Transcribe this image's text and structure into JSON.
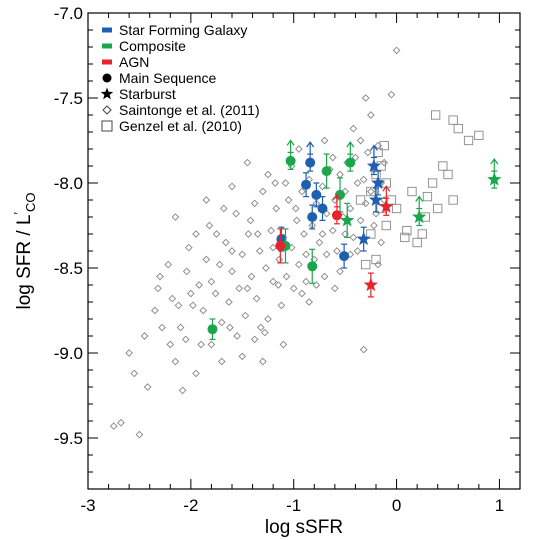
{
  "chart_data": {
    "type": "scatter",
    "xlabel": "log sSFR",
    "ylabel_main": "log SFR / L",
    "ylabel_prime": "′",
    "ylabel_sub": "CO",
    "xlim": [
      -3,
      1.2
    ],
    "ylim": [
      -9.8,
      -7.0
    ],
    "xticks": [
      {
        "v": -3,
        "label": "-3"
      },
      {
        "v": -2,
        "label": "-2"
      },
      {
        "v": -1,
        "label": "-1"
      },
      {
        "v": 0,
        "label": "0"
      },
      {
        "v": 1,
        "label": "1"
      }
    ],
    "yticks": [
      {
        "v": -7.0,
        "label": "-7.0"
      },
      {
        "v": -7.5,
        "label": "-7.5"
      },
      {
        "v": -8.0,
        "label": "-8.0"
      },
      {
        "v": -8.5,
        "label": "-8.5"
      },
      {
        "v": -9.0,
        "label": "-9.0"
      },
      {
        "v": -9.5,
        "label": "-9.5"
      }
    ],
    "colors": {
      "sfg": "#1f5fb0",
      "composite": "#1aa64b",
      "agn": "#e8222a",
      "literature": "#888888"
    },
    "legend": [
      {
        "label": "Star Forming Galaxy",
        "symbol": "bar",
        "color": "#1f5fb0"
      },
      {
        "label": "Composite",
        "symbol": "bar",
        "color": "#1aa64b"
      },
      {
        "label": "AGN",
        "symbol": "bar",
        "color": "#e8222a"
      },
      {
        "label": "Main Sequence",
        "symbol": "circle",
        "color": "#000000"
      },
      {
        "label": "Starburst",
        "symbol": "star",
        "color": "#000000"
      },
      {
        "label": "Saintonge et al. (2011)",
        "symbol": "diamond",
        "color": "#000000"
      },
      {
        "label": "Genzel et al. (2010)",
        "symbol": "square",
        "color": "#000000"
      }
    ],
    "series": [
      {
        "name": "Saintonge et al. (2011)",
        "marker": "diamond",
        "points": [
          [
            -2.75,
            -9.43
          ],
          [
            -2.68,
            -9.41
          ],
          [
            -2.55,
            -9.12
          ],
          [
            -2.5,
            -9.48
          ],
          [
            -2.42,
            -9.2
          ],
          [
            -2.35,
            -8.75
          ],
          [
            -2.32,
            -8.62
          ],
          [
            -2.28,
            -8.85
          ],
          [
            -2.22,
            -8.48
          ],
          [
            -2.18,
            -8.68
          ],
          [
            -2.15,
            -9.05
          ],
          [
            -2.12,
            -8.72
          ],
          [
            -2.08,
            -9.22
          ],
          [
            -2.04,
            -8.52
          ],
          [
            -2.02,
            -8.38
          ],
          [
            -1.98,
            -8.72
          ],
          [
            -1.95,
            -9.12
          ],
          [
            -1.92,
            -8.6
          ],
          [
            -1.88,
            -8.75
          ],
          [
            -1.85,
            -8.45
          ],
          [
            -1.82,
            -8.25
          ],
          [
            -1.8,
            -8.95
          ],
          [
            -1.76,
            -8.65
          ],
          [
            -1.72,
            -8.48
          ],
          [
            -1.7,
            -8.82
          ],
          [
            -1.66,
            -8.35
          ],
          [
            -1.63,
            -8.7
          ],
          [
            -1.6,
            -8.52
          ],
          [
            -1.56,
            -8.18
          ],
          [
            -1.53,
            -8.62
          ],
          [
            -1.5,
            -8.42
          ],
          [
            -1.47,
            -8.78
          ],
          [
            -1.44,
            -8.3
          ],
          [
            -1.41,
            -8.55
          ],
          [
            -1.38,
            -8.12
          ],
          [
            -1.36,
            -8.68
          ],
          [
            -1.33,
            -8.4
          ],
          [
            -1.3,
            -8.05
          ],
          [
            -1.27,
            -8.5
          ],
          [
            -1.25,
            -8.8
          ],
          [
            -1.22,
            -8.28
          ],
          [
            -1.2,
            -8.58
          ],
          [
            -1.17,
            -8.15
          ],
          [
            -1.14,
            -8.45
          ],
          [
            -1.12,
            -8.72
          ],
          [
            -1.1,
            -8.32
          ],
          [
            -1.07,
            -8.55
          ],
          [
            -1.05,
            -8.1
          ],
          [
            -1.02,
            -8.38
          ],
          [
            -1.0,
            -8.62
          ],
          [
            -0.97,
            -8.22
          ],
          [
            -0.95,
            -8.48
          ],
          [
            -0.92,
            -8.05
          ],
          [
            -0.9,
            -8.3
          ],
          [
            -0.88,
            -8.58
          ],
          [
            -0.85,
            -7.98
          ],
          [
            -0.82,
            -8.25
          ],
          [
            -0.8,
            -8.45
          ],
          [
            -0.78,
            -8.12
          ],
          [
            -0.75,
            -8.35
          ],
          [
            -0.72,
            -8.02
          ],
          [
            -0.7,
            -8.55
          ],
          [
            -0.68,
            -8.18
          ],
          [
            -0.65,
            -7.92
          ],
          [
            -0.62,
            -8.28
          ],
          [
            -0.6,
            -8.1
          ],
          [
            -0.58,
            -8.4
          ],
          [
            -0.55,
            -7.95
          ],
          [
            -0.52,
            -8.2
          ],
          [
            -0.5,
            -8.05
          ],
          [
            -0.48,
            -7.88
          ],
          [
            -0.45,
            -8.15
          ],
          [
            -0.42,
            -8.32
          ],
          [
            -0.4,
            -7.85
          ],
          [
            -0.38,
            -8.0
          ],
          [
            -0.35,
            -8.22
          ],
          [
            -0.32,
            -7.98
          ],
          [
            -0.3,
            -8.12
          ],
          [
            -0.28,
            -7.82
          ],
          [
            -0.25,
            -8.05
          ],
          [
            -0.22,
            -7.92
          ],
          [
            -0.2,
            -8.18
          ],
          [
            -0.18,
            -7.78
          ],
          [
            -0.15,
            -8.0
          ],
          [
            -0.12,
            -7.88
          ],
          [
            -0.3,
            -7.5
          ],
          [
            -0.05,
            -7.48
          ],
          [
            0.0,
            -7.22
          ],
          [
            -0.32,
            -8.98
          ],
          [
            -1.6,
            -8.02
          ],
          [
            -1.45,
            -7.88
          ],
          [
            -1.25,
            -7.95
          ],
          [
            -1.75,
            -8.3
          ],
          [
            -2.05,
            -8.92
          ],
          [
            -1.95,
            -8.3
          ],
          [
            -1.5,
            -9.02
          ],
          [
            -1.38,
            -8.92
          ],
          [
            -1.28,
            -8.88
          ],
          [
            -0.95,
            -7.8
          ],
          [
            -1.08,
            -8.0
          ],
          [
            -0.6,
            -8.62
          ],
          [
            -0.85,
            -8.7
          ],
          [
            -1.1,
            -8.95
          ],
          [
            -1.3,
            -9.05
          ],
          [
            -2.3,
            -8.55
          ],
          [
            -2.45,
            -8.9
          ],
          [
            -2.6,
            -9.0
          ],
          [
            -2.15,
            -8.2
          ],
          [
            -1.68,
            -8.15
          ],
          [
            -1.32,
            -8.85
          ],
          [
            -0.7,
            -7.75
          ],
          [
            -0.42,
            -7.68
          ],
          [
            -0.25,
            -7.6
          ],
          [
            -0.55,
            -8.52
          ],
          [
            -0.68,
            -8.42
          ],
          [
            -1.85,
            -8.1
          ],
          [
            -1.45,
            -8.62
          ],
          [
            -1.18,
            -8.0
          ],
          [
            -1.02,
            -7.9
          ],
          [
            -0.78,
            -8.6
          ],
          [
            -1.55,
            -8.9
          ],
          [
            -1.9,
            -8.95
          ],
          [
            -2.2,
            -8.95
          ],
          [
            -1.42,
            -8.22
          ],
          [
            -1.2,
            -8.38
          ],
          [
            -0.98,
            -8.15
          ],
          [
            -0.88,
            -8.42
          ],
          [
            -0.62,
            -7.85
          ],
          [
            -0.45,
            -8.42
          ],
          [
            -0.35,
            -7.75
          ],
          [
            -0.15,
            -8.35
          ],
          [
            -0.18,
            -8.48
          ],
          [
            -1.62,
            -8.85
          ],
          [
            -1.8,
            -8.58
          ],
          [
            -2.0,
            -8.65
          ],
          [
            -1.6,
            -8.4
          ],
          [
            -1.15,
            -8.6
          ],
          [
            -0.92,
            -8.65
          ],
          [
            -0.72,
            -8.3
          ],
          [
            -0.5,
            -8.3
          ],
          [
            -0.38,
            -8.4
          ],
          [
            -0.22,
            -8.25
          ],
          [
            -0.12,
            -8.1
          ],
          [
            -1.35,
            -8.3
          ],
          [
            -1.7,
            -9.05
          ],
          [
            -2.1,
            -8.85
          ]
        ]
      },
      {
        "name": "Genzel et al. (2010)",
        "marker": "square",
        "points": [
          [
            -0.35,
            -8.1
          ],
          [
            -0.25,
            -8.05
          ],
          [
            -0.2,
            -7.95
          ],
          [
            -0.18,
            -7.82
          ],
          [
            -0.15,
            -7.9
          ],
          [
            -0.1,
            -8.0
          ],
          [
            -0.05,
            -8.1
          ],
          [
            -0.2,
            -8.45
          ],
          [
            -0.25,
            -8.3
          ],
          [
            -0.1,
            -8.25
          ],
          [
            0.1,
            -8.28
          ],
          [
            0.15,
            -8.05
          ],
          [
            0.2,
            -8.35
          ],
          [
            0.25,
            -8.3
          ],
          [
            0.3,
            -8.08
          ],
          [
            0.35,
            -8.0
          ],
          [
            0.4,
            -8.15
          ],
          [
            0.45,
            -7.9
          ],
          [
            0.5,
            -7.95
          ],
          [
            0.55,
            -8.1
          ],
          [
            0.6,
            -7.68
          ],
          [
            0.7,
            -7.75
          ],
          [
            0.8,
            -7.72
          ],
          [
            0.38,
            -7.6
          ],
          [
            0.55,
            -7.63
          ],
          [
            0.0,
            -8.15
          ],
          [
            -0.12,
            -7.78
          ],
          [
            -0.3,
            -8.48
          ],
          [
            -0.15,
            -8.15
          ],
          [
            0.08,
            -8.32
          ],
          [
            0.28,
            -8.2
          ]
        ]
      },
      {
        "name": "Star Forming Galaxy - Main Sequence",
        "marker": "circle",
        "color": "#1f5fb0",
        "points": [
          {
            "x": -0.88,
            "y": -8.01,
            "el": 0.07,
            "eh": 0.07
          },
          {
            "x": -0.82,
            "y": -8.2,
            "el": 0.07,
            "eh": 0.07
          },
          {
            "x": -0.78,
            "y": -8.07,
            "el": 0.07,
            "eh": 0.07
          },
          {
            "x": -0.72,
            "y": -8.15,
            "el": 0.07,
            "eh": 0.07
          },
          {
            "x": -1.12,
            "y": -8.33,
            "el": 0.07,
            "eh": 0.07
          },
          {
            "x": -0.51,
            "y": -8.43,
            "el": 0.07,
            "eh": 0.07
          },
          {
            "x": -0.84,
            "y": -7.88,
            "el": 0.05,
            "eh": 0.05,
            "up": true
          }
        ]
      },
      {
        "name": "Star Forming Galaxy - Starburst",
        "marker": "star",
        "color": "#1f5fb0",
        "points": [
          {
            "x": -0.32,
            "y": -8.33,
            "el": 0.07,
            "eh": 0.07
          },
          {
            "x": -0.2,
            "y": -8.1,
            "el": 0.07,
            "eh": 0.07
          },
          {
            "x": -0.18,
            "y": -8.0,
            "el": 0.07,
            "eh": 0.07
          },
          {
            "x": -0.22,
            "y": -7.9,
            "el": 0.05,
            "eh": 0.05,
            "up": true
          }
        ]
      },
      {
        "name": "Composite - Main Sequence",
        "marker": "circle",
        "color": "#1aa64b",
        "points": [
          {
            "x": -1.79,
            "y": -8.86,
            "el": 0.06,
            "eh": 0.06
          },
          {
            "x": -0.82,
            "y": -8.49,
            "el": 0.1,
            "eh": 0.1
          },
          {
            "x": -0.68,
            "y": -7.93,
            "el": 0.1,
            "eh": 0.1
          },
          {
            "x": -0.55,
            "y": -8.07,
            "el": 0.1,
            "eh": 0.1
          },
          {
            "x": -1.08,
            "y": -8.37,
            "el": 0.1,
            "eh": 0.1
          },
          {
            "x": -1.03,
            "y": -7.87,
            "el": 0.05,
            "eh": 0.05,
            "up": true
          },
          {
            "x": -0.45,
            "y": -7.88,
            "el": 0.05,
            "eh": 0.05,
            "up": true
          }
        ]
      },
      {
        "name": "Composite - Starburst",
        "marker": "star",
        "color": "#1aa64b",
        "points": [
          {
            "x": -0.48,
            "y": -8.22,
            "el": 0.1,
            "eh": 0.1
          },
          {
            "x": 0.22,
            "y": -8.2,
            "el": 0.05,
            "eh": 0.05,
            "up": true
          },
          {
            "x": 0.95,
            "y": -7.98,
            "el": 0.05,
            "eh": 0.05,
            "up": true
          }
        ]
      },
      {
        "name": "AGN - Main Sequence",
        "marker": "circle",
        "color": "#e8222a",
        "points": [
          {
            "x": -1.13,
            "y": -8.37,
            "el": 0.1,
            "eh": 0.1
          },
          {
            "x": -0.58,
            "y": -8.19,
            "el": 0.05,
            "eh": 0.05,
            "up": true
          }
        ]
      },
      {
        "name": "AGN - Starburst",
        "marker": "star",
        "color": "#e8222a",
        "points": [
          {
            "x": -0.25,
            "y": -8.6,
            "el": 0.07,
            "eh": 0.07
          },
          {
            "x": -0.1,
            "y": -8.14,
            "el": 0.05,
            "eh": 0.05,
            "up": true
          }
        ]
      }
    ]
  }
}
